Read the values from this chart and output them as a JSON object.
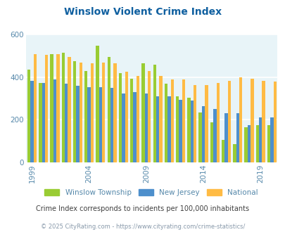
{
  "title": "Winslow Violent Crime Index",
  "title_color": "#1060a0",
  "subtitle": "Crime Index corresponds to incidents per 100,000 inhabitants",
  "subtitle_color": "#404040",
  "footer": "© 2025 CityRating.com - https://www.cityrating.com/crime-statistics/",
  "footer_color": "#8899aa",
  "years": [
    1999,
    2000,
    2001,
    2002,
    2003,
    2004,
    2005,
    2006,
    2007,
    2008,
    2009,
    2010,
    2011,
    2012,
    2013,
    2014,
    2015,
    2016,
    2017,
    2018,
    2019,
    2020
  ],
  "winslow": [
    435,
    375,
    510,
    515,
    475,
    430,
    550,
    495,
    420,
    395,
    465,
    460,
    370,
    310,
    305,
    235,
    190,
    105,
    85,
    165,
    175,
    175
  ],
  "nj": [
    385,
    375,
    390,
    370,
    360,
    355,
    355,
    350,
    325,
    330,
    325,
    310,
    310,
    295,
    290,
    265,
    250,
    230,
    230,
    175,
    210,
    210
  ],
  "national": [
    510,
    505,
    510,
    495,
    470,
    465,
    470,
    465,
    425,
    405,
    430,
    405,
    390,
    390,
    365,
    365,
    375,
    385,
    400,
    395,
    385,
    380
  ],
  "winslow_color": "#99cc33",
  "nj_color": "#4d8fcc",
  "national_color": "#ffbb44",
  "bg_color": "#e8f4f8",
  "ylim": [
    0,
    600
  ],
  "yticks": [
    0,
    200,
    400,
    600
  ],
  "grid_color": "#ffffff",
  "bar_width": 0.27,
  "legend_labels": [
    "Winslow Township",
    "New Jersey",
    "National"
  ],
  "tick_label_color": "#5588aa",
  "tick_years": [
    1999,
    2004,
    2009,
    2014,
    2019
  ],
  "figsize": [
    4.06,
    3.3
  ],
  "dpi": 100
}
